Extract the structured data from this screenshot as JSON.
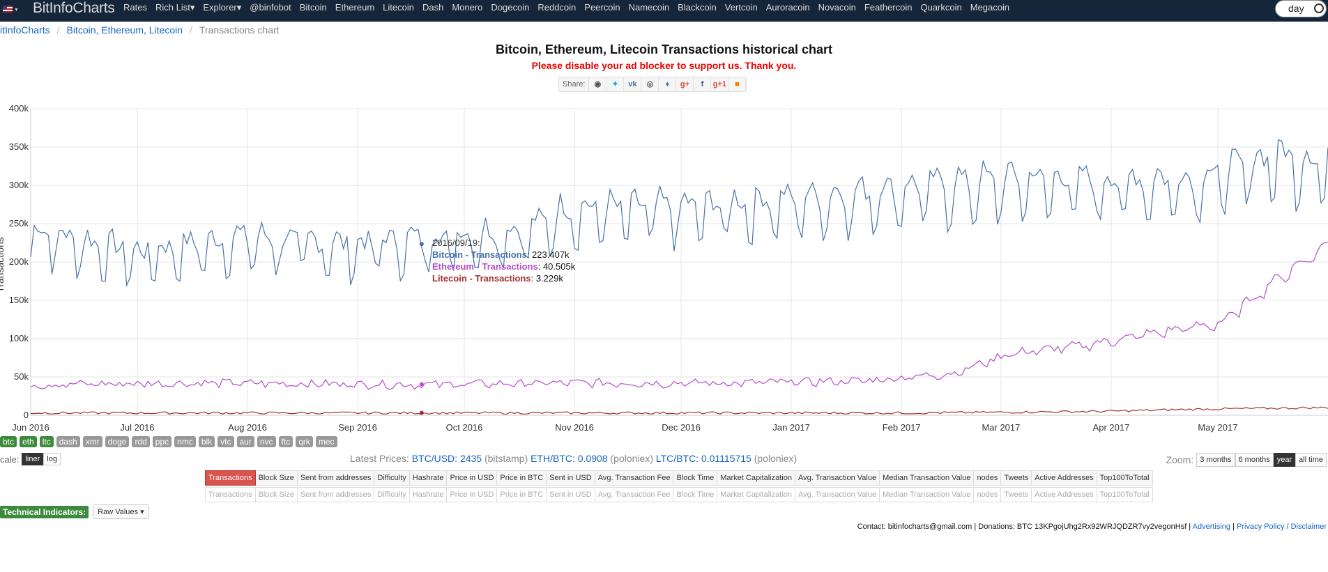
{
  "nav": {
    "brand": "BitInfoCharts",
    "links": [
      "Rates",
      "Rich List▾",
      "Explorer▾",
      "@binfobot",
      "Bitcoin",
      "Ethereum",
      "Litecoin",
      "Dash",
      "Monero",
      "Dogecoin",
      "Reddcoin",
      "Peercoin",
      "Namecoin",
      "Blackcoin",
      "Vertcoin",
      "Auroracoin",
      "Novacoin",
      "Feathercoin",
      "Quarkcoin",
      "Megacoin"
    ],
    "day_toggle": "day"
  },
  "breadcrumb": {
    "home": "itInfoCharts",
    "coins": "Bitcoin, Ethereum, Litecoin",
    "current": "Transactions chart"
  },
  "title": "Bitcoin, Ethereum, Litecoin Transactions historical chart",
  "ad_note": "Please disable your ad blocker to support us. Thank you.",
  "share": {
    "label": "Share:",
    "icons": [
      "reddit-icon",
      "twitter-icon",
      "vk-icon",
      "weibo-icon",
      "like-icon",
      "google-plus-icon",
      "facebook-icon",
      "google-plus-one-icon",
      "blogger-icon"
    ]
  },
  "tooltip": {
    "date": "2016/09/19:",
    "btc_label": "Bitcoin - Transactions",
    "btc_value": ": 223.407k",
    "eth_label": "Ethereum - Transactions",
    "eth_value": ": 40.505k",
    "ltc_label": "Litecoin - Transactions",
    "ltc_value": ": 3.229k"
  },
  "chart_data": {
    "type": "line",
    "ylabel": "Transactions",
    "y_ticks": [
      "0",
      "50k",
      "100k",
      "150k",
      "200k",
      "250k",
      "300k",
      "350k",
      "400k"
    ],
    "ylim": [
      0,
      400000
    ],
    "x_ticks": [
      "Jun 2016",
      "Jul 2016",
      "Aug 2016",
      "Sep 2016",
      "Oct 2016",
      "Nov 2016",
      "Dec 2016",
      "Jan 2017",
      "Feb 2017",
      "Mar 2017",
      "Apr 2017",
      "May 2017"
    ],
    "grid": true,
    "series": [
      {
        "name": "Bitcoin - Transactions",
        "color": "#4572a7",
        "approx_range_k": [
          170,
          370
        ],
        "anchors": [
          [
            0,
            235
          ],
          [
            30,
            205
          ],
          [
            60,
            225
          ],
          [
            90,
            215
          ],
          [
            110,
            223
          ],
          [
            140,
            235
          ],
          [
            150,
            260
          ],
          [
            190,
            265
          ],
          [
            220,
            275
          ],
          [
            250,
            290
          ],
          [
            280,
            300
          ],
          [
            305,
            295
          ],
          [
            330,
            300
          ],
          [
            350,
            330
          ],
          [
            365,
            320
          ]
        ]
      },
      {
        "name": "Ethereum - Transactions",
        "color": "#b44fc8",
        "approx_range_k": [
          30,
          215
        ],
        "anchors": [
          [
            0,
            40
          ],
          [
            50,
            42
          ],
          [
            110,
            40
          ],
          [
            150,
            42
          ],
          [
            200,
            42
          ],
          [
            235,
            45
          ],
          [
            260,
            55
          ],
          [
            275,
            80
          ],
          [
            295,
            90
          ],
          [
            320,
            110
          ],
          [
            335,
            120
          ],
          [
            350,
            175
          ],
          [
            365,
            200
          ]
        ]
      },
      {
        "name": "Litecoin - Transactions",
        "color": "#a23131",
        "approx_range_k": [
          0,
          12
        ],
        "anchors": [
          [
            0,
            3
          ],
          [
            110,
            3
          ],
          [
            250,
            3
          ],
          [
            300,
            5
          ],
          [
            330,
            8
          ],
          [
            365,
            10
          ]
        ]
      }
    ]
  },
  "coin_tags": [
    "btc",
    "eth",
    "ltc",
    "dash",
    "xmr",
    "doge",
    "rdd",
    "ppc",
    "nmc",
    "blk",
    "vtc",
    "aur",
    "nvc",
    "ftc",
    "qrk",
    "mec"
  ],
  "coin_tags_active": [
    "btc",
    "eth",
    "ltc"
  ],
  "scale": {
    "label": "cale:",
    "liner": "liner",
    "log": "log"
  },
  "prices": {
    "label": "Latest Prices:",
    "btc": "BTC/USD: 2435",
    "btc_src": "(bitstamp)",
    "eth": "ETH/BTC: 0.0908",
    "eth_src": "(poloniex)",
    "ltc": "LTC/BTC: 0.01115715",
    "ltc_src": "(poloniex)"
  },
  "zoom": {
    "label": "Zoom:",
    "options": [
      "3 months",
      "6 months",
      "year",
      "all time"
    ],
    "selected": "year"
  },
  "metrics": [
    "Transactions",
    "Block Size",
    "Sent from addresses",
    "Difficulty",
    "Hashrate",
    "Price in USD",
    "Price in BTC",
    "Sent in USD",
    "Avg. Transaction Fee",
    "Block Time",
    "Market Capitalization",
    "Avg. Transaction Value",
    "Median Transaction Value",
    "nodes",
    "Tweets",
    "Active Addresses",
    "Top100ToTotal"
  ],
  "technical": {
    "label": "Technical Indicators:",
    "select": "Raw Values ▾"
  },
  "footer": {
    "contact": "Contact: bitinfocharts@gmail.com | Donations: BTC 13KPgojUhg2Rx92WRJQDZR7vy2vegonHsf  |",
    "advertising": "Advertising",
    "sep": " | ",
    "privacy": "Privacy Policy / Disclaimer"
  }
}
